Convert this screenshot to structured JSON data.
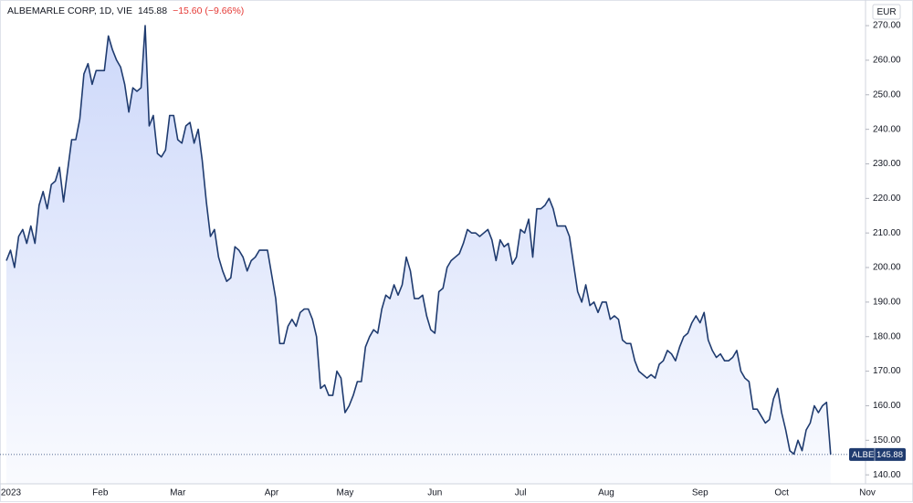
{
  "chart_data": {
    "type": "area",
    "title": "ALBEMARLE CORP, 1D, VIE",
    "change": "−15.60 (−9.66%)",
    "currency": "EUR",
    "categories": [
      "2023",
      null,
      null,
      null,
      null,
      null,
      null,
      null,
      null,
      null,
      null,
      null,
      null,
      null,
      null,
      null,
      null,
      null,
      null,
      null,
      null,
      null,
      null,
      "Feb",
      null,
      null,
      null,
      null,
      null,
      null,
      null,
      null,
      null,
      null,
      null,
      null,
      null,
      null,
      null,
      null,
      null,
      null,
      "Mar",
      null,
      null,
      null,
      null,
      null,
      null,
      null,
      null,
      null,
      null,
      null,
      null,
      null,
      null,
      null,
      null,
      null,
      null,
      null,
      null,
      null,
      null,
      "Apr",
      null,
      null,
      null,
      null,
      null,
      null,
      null,
      null,
      null,
      null,
      null,
      null,
      null,
      null,
      null,
      null,
      null,
      "May",
      null,
      null,
      null,
      null,
      null,
      null,
      null,
      null,
      null,
      null,
      null,
      null,
      null,
      null,
      null,
      null,
      null,
      null,
      null,
      null,
      null,
      "Jun",
      null,
      null,
      null,
      null,
      null,
      null,
      null,
      null,
      null,
      null,
      null,
      null,
      null,
      null,
      null,
      null,
      null,
      null,
      null,
      null,
      "Jul",
      null,
      null,
      null,
      null,
      null,
      null,
      null,
      null,
      null,
      null,
      null,
      null,
      null,
      null,
      null,
      null,
      null,
      null,
      null,
      null,
      "Aug",
      null,
      null,
      null,
      null,
      null,
      null,
      null,
      null,
      null,
      null,
      null,
      null,
      null,
      null,
      null,
      null,
      null,
      null,
      null,
      null,
      null,
      null,
      "Sep",
      null,
      null,
      null,
      null,
      null,
      null,
      null,
      null,
      null,
      null,
      null,
      null,
      null,
      null,
      null,
      null,
      null,
      null,
      null,
      "Oct",
      null,
      null,
      null,
      null,
      null,
      null,
      null,
      null,
      null,
      null,
      null,
      null,
      null,
      null,
      null,
      null,
      null,
      null,
      null,
      null,
      "Nov"
    ],
    "series": [
      {
        "name": "ALBE",
        "color": "#1f3b6f",
        "values": [
          202,
          205,
          200,
          209,
          211,
          207,
          212,
          207,
          218,
          222,
          217,
          224,
          225,
          229,
          219,
          228,
          237,
          237,
          243,
          256,
          259,
          253,
          257,
          257,
          257,
          267,
          263,
          260,
          258,
          253,
          245,
          252,
          251,
          252,
          270,
          241,
          244,
          233,
          232,
          234,
          244,
          244,
          237,
          236,
          241,
          242,
          236,
          240,
          231,
          219,
          209,
          211,
          203,
          199,
          196,
          197,
          206,
          205,
          203,
          199,
          202,
          203,
          205,
          205,
          205,
          198,
          191,
          178,
          178,
          183,
          185,
          183,
          187,
          188,
          188,
          185,
          180,
          165,
          166,
          163,
          163,
          170,
          168,
          158,
          160,
          163,
          167,
          167,
          177,
          180,
          182,
          181,
          188,
          192,
          191,
          195,
          192,
          195,
          203,
          199,
          191,
          191,
          192,
          186,
          182,
          181,
          193,
          194,
          200,
          202,
          203,
          204,
          207,
          211,
          210,
          210,
          209,
          210,
          211,
          208,
          202,
          208,
          206,
          207,
          201,
          203,
          211,
          210,
          214,
          203,
          217,
          217,
          218,
          220,
          217,
          212,
          212,
          212,
          209,
          201,
          193,
          190,
          195,
          189,
          190,
          187,
          190,
          190,
          185,
          186,
          185,
          179,
          178,
          178,
          173,
          170,
          169,
          168,
          169,
          168,
          172,
          173,
          176,
          175,
          173,
          177,
          180,
          181,
          184,
          186,
          184,
          187,
          179,
          176,
          174,
          175,
          173,
          173,
          174,
          176,
          170,
          168,
          167,
          159,
          159,
          157,
          155,
          156,
          162,
          165,
          158,
          153,
          147,
          146,
          150,
          147,
          153,
          155,
          160,
          158,
          160,
          161,
          145.88,
          null,
          null,
          null,
          null,
          null,
          null,
          null,
          null,
          null
        ]
      }
    ],
    "ylim": [
      137.4,
      276.1
    ],
    "yticks": [
      {
        "value": 140,
        "label": "140.00"
      },
      {
        "value": 150,
        "label": "150.00"
      },
      {
        "value": 160,
        "label": "160.00"
      },
      {
        "value": 170,
        "label": "170.00"
      },
      {
        "value": 180,
        "label": "180.00"
      },
      {
        "value": 190,
        "label": "190.00"
      },
      {
        "value": 200,
        "label": "200.00"
      },
      {
        "value": 210,
        "label": "210.00"
      },
      {
        "value": 220,
        "label": "220.00"
      },
      {
        "value": 230,
        "label": "230.00"
      },
      {
        "value": 240,
        "label": "240.00"
      },
      {
        "value": 250,
        "label": "250.00"
      },
      {
        "value": 260,
        "label": "260.00"
      },
      {
        "value": 270,
        "label": "270.00"
      }
    ],
    "grid": false
  }
}
